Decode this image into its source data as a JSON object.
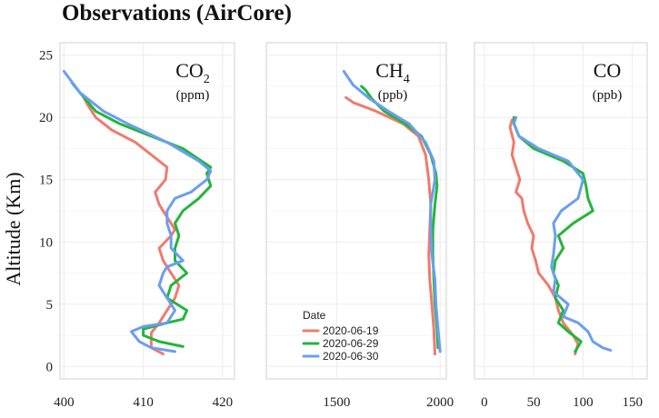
{
  "title": "Observations (AirCore)",
  "ylabel": "Altitude (Km)",
  "legend": {
    "title": "Date",
    "entries": [
      {
        "label": "2020-06-19",
        "color": "#f07a6e"
      },
      {
        "label": "2020-06-29",
        "color": "#22b63a"
      },
      {
        "label": "2020-06-30",
        "color": "#6a9ef2"
      }
    ]
  },
  "chart_data": [
    {
      "type": "line",
      "species_main": "CO",
      "species_sub": "2",
      "unit": "(ppm)",
      "xlim": [
        399.5,
        421.5
      ],
      "ylim": [
        -1,
        26
      ],
      "xticks": [
        400,
        410,
        420
      ],
      "yticks": [
        0,
        5,
        10,
        15,
        20,
        25
      ],
      "grid": true,
      "series": [
        {
          "name": "2020-06-19",
          "color": "#f07a6e",
          "points": [
            [
              412.5,
              1
            ],
            [
              411,
              1.5
            ],
            [
              411,
              2.7
            ],
            [
              412,
              3.5
            ],
            [
              413,
              4.5
            ],
            [
              414,
              5.5
            ],
            [
              414.5,
              6.5
            ],
            [
              413.5,
              7.5
            ],
            [
              412.5,
              8.5
            ],
            [
              412,
              9.5
            ],
            [
              413.5,
              10.5
            ],
            [
              414,
              11
            ],
            [
              413,
              12
            ],
            [
              412,
              13
            ],
            [
              411.5,
              14
            ],
            [
              412.8,
              15
            ],
            [
              413,
              16
            ],
            [
              411,
              17
            ],
            [
              409,
              18
            ],
            [
              406,
              19
            ],
            [
              404,
              20
            ],
            [
              403,
              21
            ],
            [
              402.5,
              21.6
            ]
          ]
        },
        {
          "name": "2020-06-29",
          "color": "#22b63a",
          "points": [
            [
              415,
              1.6
            ],
            [
              412,
              2
            ],
            [
              410,
              2.5
            ],
            [
              410,
              3
            ],
            [
              413,
              3.5
            ],
            [
              415,
              3.8
            ],
            [
              415.5,
              4.5
            ],
            [
              413,
              5.5
            ],
            [
              413.5,
              6.5
            ],
            [
              415.5,
              7.5
            ],
            [
              414,
              8.5
            ],
            [
              414,
              9.5
            ],
            [
              414.5,
              10.5
            ],
            [
              414,
              11.5
            ],
            [
              415,
              12.5
            ],
            [
              417,
              13.5
            ],
            [
              418.5,
              14.5
            ],
            [
              418,
              15.5
            ],
            [
              418.5,
              16
            ],
            [
              415,
              17.5
            ],
            [
              411,
              18.5
            ],
            [
              407,
              19.5
            ],
            [
              404,
              20.5
            ],
            [
              402,
              22
            ],
            [
              401,
              22.8
            ]
          ]
        },
        {
          "name": "2020-06-30",
          "color": "#6a9ef2",
          "points": [
            [
              414,
              1.2
            ],
            [
              411,
              1.5
            ],
            [
              409.5,
              2
            ],
            [
              408.5,
              2.8
            ],
            [
              410,
              3.2
            ],
            [
              413,
              3.5
            ],
            [
              414,
              4.5
            ],
            [
              413,
              5.5
            ],
            [
              412,
              6.5
            ],
            [
              412.5,
              7.5
            ],
            [
              413,
              8
            ],
            [
              415,
              8.5
            ],
            [
              413.5,
              9.5
            ],
            [
              413.5,
              10.5
            ],
            [
              413,
              11.5
            ],
            [
              413,
              12.5
            ],
            [
              414,
              13.5
            ],
            [
              416,
              14
            ],
            [
              418,
              15
            ],
            [
              418.5,
              15.7
            ],
            [
              417,
              16.5
            ],
            [
              413,
              18
            ],
            [
              408,
              19.5
            ],
            [
              405,
              20.5
            ],
            [
              402,
              22
            ],
            [
              400,
              23.7
            ]
          ]
        }
      ]
    },
    {
      "type": "line",
      "species_main": "CH",
      "species_sub": "4",
      "unit": "(ppb)",
      "xlim": [
        1160,
        2030
      ],
      "ylim": [
        -1,
        26
      ],
      "xticks": [
        1500,
        2000
      ],
      "yticks": [
        0,
        5,
        10,
        15,
        20,
        25
      ],
      "grid": true,
      "series": [
        {
          "name": "2020-06-19",
          "color": "#f07a6e",
          "points": [
            [
              1975,
              1
            ],
            [
              1970,
              3
            ],
            [
              1960,
              5
            ],
            [
              1950,
              7
            ],
            [
              1945,
              9
            ],
            [
              1950,
              11
            ],
            [
              1955,
              13
            ],
            [
              1945,
              15
            ],
            [
              1930,
              17
            ],
            [
              1895,
              18.5
            ],
            [
              1820,
              19.5
            ],
            [
              1690,
              20.5
            ],
            [
              1580,
              21.2
            ],
            [
              1545,
              21.6
            ]
          ]
        },
        {
          "name": "2020-06-29",
          "color": "#22b63a",
          "points": [
            [
              1990,
              1.5
            ],
            [
              1985,
              3
            ],
            [
              1975,
              5
            ],
            [
              1970,
              7
            ],
            [
              1965,
              9
            ],
            [
              1965,
              11
            ],
            [
              1975,
              13
            ],
            [
              1985,
              14.5
            ],
            [
              1980,
              15.5
            ],
            [
              1955,
              17
            ],
            [
              1910,
              18.5
            ],
            [
              1830,
              19.5
            ],
            [
              1730,
              20.5
            ],
            [
              1670,
              21.5
            ],
            [
              1640,
              22.2
            ],
            [
              1620,
              22.5
            ]
          ]
        },
        {
          "name": "2020-06-30",
          "color": "#6a9ef2",
          "points": [
            [
              2000,
              1.2
            ],
            [
              1990,
              3
            ],
            [
              1980,
              5
            ],
            [
              1975,
              7
            ],
            [
              1960,
              9
            ],
            [
              1955,
              11
            ],
            [
              1955,
              13
            ],
            [
              1975,
              15
            ],
            [
              1970,
              16.5
            ],
            [
              1930,
              18
            ],
            [
              1850,
              19.5
            ],
            [
              1750,
              20.5
            ],
            [
              1660,
              21.5
            ],
            [
              1580,
              22.6
            ],
            [
              1535,
              23.7
            ]
          ]
        }
      ]
    },
    {
      "type": "line",
      "species_main": "CO",
      "species_sub": "",
      "unit": "(ppb)",
      "xlim": [
        -10,
        165
      ],
      "ylim": [
        -1,
        26
      ],
      "xticks": [
        0,
        50,
        100,
        150
      ],
      "yticks": [
        0,
        5,
        10,
        15,
        20,
        25
      ],
      "grid": true,
      "series": [
        {
          "name": "2020-06-19",
          "color": "#f07a6e",
          "points": [
            [
              92,
              1
            ],
            [
              95,
              1.8
            ],
            [
              90,
              2.5
            ],
            [
              80,
              3.5
            ],
            [
              75,
              4.5
            ],
            [
              72,
              5.5
            ],
            [
              65,
              6.5
            ],
            [
              55,
              7.5
            ],
            [
              52,
              8.5
            ],
            [
              48,
              9.5
            ],
            [
              50,
              10.5
            ],
            [
              44,
              11.5
            ],
            [
              40,
              12.5
            ],
            [
              38,
              13.5
            ],
            [
              32,
              14
            ],
            [
              36,
              15
            ],
            [
              32,
              16
            ],
            [
              28,
              17
            ],
            [
              30,
              18
            ],
            [
              26,
              19.2
            ],
            [
              28,
              19.8
            ]
          ]
        },
        {
          "name": "2020-06-29",
          "color": "#22b63a",
          "points": [
            [
              92,
              1.2
            ],
            [
              98,
              2
            ],
            [
              85,
              2.8
            ],
            [
              75,
              3.5
            ],
            [
              80,
              4.5
            ],
            [
              72,
              5.5
            ],
            [
              75,
              6.5
            ],
            [
              70,
              7.5
            ],
            [
              72,
              8.5
            ],
            [
              80,
              9.5
            ],
            [
              75,
              10.5
            ],
            [
              90,
              11.5
            ],
            [
              110,
              12.5
            ],
            [
              105,
              13.5
            ],
            [
              103,
              14.5
            ],
            [
              100,
              15.5
            ],
            [
              80,
              16.5
            ],
            [
              50,
              17.5
            ],
            [
              35,
              18.5
            ],
            [
              30,
              19.5
            ],
            [
              30,
              20
            ]
          ]
        },
        {
          "name": "2020-06-30",
          "color": "#6a9ef2",
          "points": [
            [
              128,
              1.3
            ],
            [
              120,
              1.5
            ],
            [
              110,
              2
            ],
            [
              105,
              2.8
            ],
            [
              95,
              3.5
            ],
            [
              80,
              4
            ],
            [
              85,
              5
            ],
            [
              70,
              6
            ],
            [
              72,
              7
            ],
            [
              68,
              8
            ],
            [
              70,
              9
            ],
            [
              72,
              10.5
            ],
            [
              70,
              11.5
            ],
            [
              78,
              12.5
            ],
            [
              95,
              13.5
            ],
            [
              100,
              15
            ],
            [
              85,
              16.5
            ],
            [
              55,
              17.5
            ],
            [
              35,
              18.5
            ],
            [
              30,
              19.5
            ],
            [
              32,
              20
            ]
          ]
        }
      ]
    }
  ]
}
